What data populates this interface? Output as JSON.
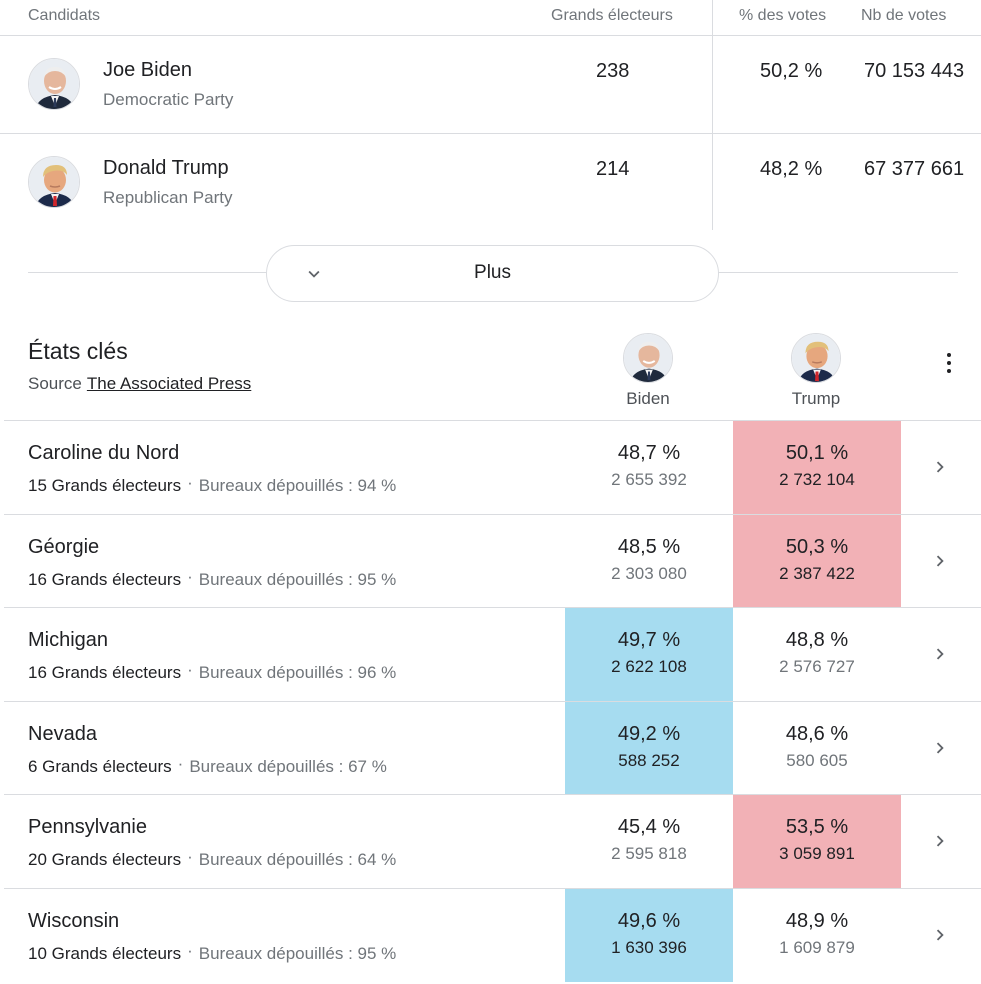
{
  "candidates_table": {
    "headers": {
      "candidate": "Candidats",
      "electors": "Grands électeurs",
      "pct": "% des votes",
      "votes": "Nb de votes"
    },
    "rows": [
      {
        "name": "Joe Biden",
        "party": "Democratic Party",
        "electors": "238",
        "pct": "50,2 %",
        "votes": "70 153 443"
      },
      {
        "name": "Donald Trump",
        "party": "Republican Party",
        "electors": "214",
        "pct": "48,2 %",
        "votes": "67 377 661"
      }
    ]
  },
  "more_button": {
    "label": "Plus",
    "icon": "chevron-down-icon"
  },
  "key_states": {
    "title": "États clés",
    "source_prefix": "Source",
    "source_link": "The Associated Press",
    "columns": [
      {
        "name": "Biden",
        "color": "#a6dcf0"
      },
      {
        "name": "Trump",
        "color": "#f2b1b6"
      }
    ],
    "rows": [
      {
        "state": "Caroline du Nord",
        "electors": "15 Grands électeurs",
        "bureaux": "Bureaux dépouillés : 94 %",
        "biden_pct": "48,7 %",
        "biden_votes": "2 655 392",
        "trump_pct": "50,1 %",
        "trump_votes": "2 732 104",
        "winner": "trump"
      },
      {
        "state": "Géorgie",
        "electors": "16 Grands électeurs",
        "bureaux": "Bureaux dépouillés : 95 %",
        "biden_pct": "48,5 %",
        "biden_votes": "2 303 080",
        "trump_pct": "50,3 %",
        "trump_votes": "2 387 422",
        "winner": "trump"
      },
      {
        "state": "Michigan",
        "electors": "16 Grands électeurs",
        "bureaux": "Bureaux dépouillés : 96 %",
        "biden_pct": "49,7 %",
        "biden_votes": "2 622 108",
        "trump_pct": "48,8 %",
        "trump_votes": "2 576 727",
        "winner": "biden"
      },
      {
        "state": "Nevada",
        "electors": "6 Grands électeurs",
        "bureaux": "Bureaux dépouillés : 67 %",
        "biden_pct": "49,2 %",
        "biden_votes": "588 252",
        "trump_pct": "48,6 %",
        "trump_votes": "580 605",
        "winner": "biden"
      },
      {
        "state": "Pennsylvanie",
        "electors": "20 Grands électeurs",
        "bureaux": "Bureaux dépouillés : 64 %",
        "biden_pct": "45,4 %",
        "biden_votes": "2 595 818",
        "trump_pct": "53,5 %",
        "trump_votes": "3 059 891",
        "winner": "trump"
      },
      {
        "state": "Wisconsin",
        "electors": "10 Grands électeurs",
        "bureaux": "Bureaux dépouillés : 95 %",
        "biden_pct": "49,6 %",
        "biden_votes": "1 630 396",
        "trump_pct": "48,9 %",
        "trump_votes": "1 609 879",
        "winner": "biden"
      }
    ]
  },
  "colors": {
    "democrat_highlight": "#a6dcf0",
    "republican_highlight": "#f2b1b6",
    "divider": "#dadce0",
    "secondary_text": "#70757a"
  }
}
